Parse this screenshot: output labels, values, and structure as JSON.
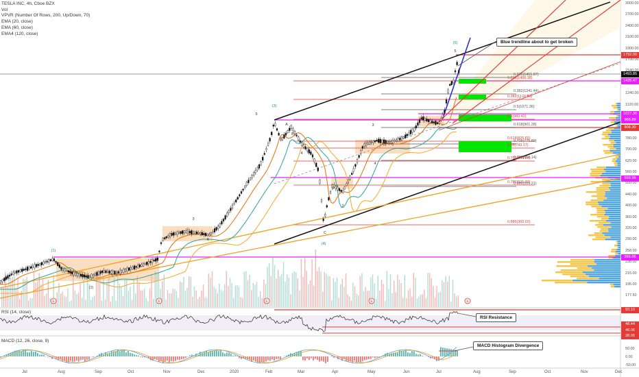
{
  "legend": {
    "title": "TESLA INC, 4h, Cboe BZX",
    "lines": [
      "Vol",
      "VPVR (Number Of Rows, 200, Up/Down, 70)",
      "EMA (20, close)",
      "EMA (60, close)",
      "EMA4 (120, close)"
    ]
  },
  "rsi_legend": "RSI (14, close)",
  "macd_legend": "MACD (12, 26, close, 9)",
  "callouts": {
    "trendline": "Blue trendline about to get broken",
    "rsi": "RSI Resistance",
    "macd": "MACD Histogram Divergence"
  },
  "colors": {
    "up": "#26a69a",
    "down": "#ef5350",
    "candle": "#111111",
    "ema20": "#ef6c00",
    "ema60": "#26a69a",
    "ema120": "#f9a825",
    "magenta": "#e91eff",
    "red": "#e53935",
    "green": "#00e600",
    "orange_zone": "#f5c38a",
    "vp_up": "#4aa3e8",
    "vp_down": "#f7c444"
  },
  "price_tags": [
    {
      "value": "1792.00",
      "color": "#e53935"
    },
    {
      "value": "1493.85",
      "color": "#111111"
    },
    {
      "value": "1435.47",
      "color": "#e91eff"
    },
    {
      "value": "1027.36",
      "color": "#e91eff"
    },
    {
      "value": "968.89",
      "color": "#e91eff"
    },
    {
      "value": "908.30",
      "color": "#e53935"
    },
    {
      "value": "559.99",
      "color": "#e91eff"
    },
    {
      "value": "266.06",
      "color": "#e91eff"
    }
  ],
  "rsi_tags": [
    {
      "value": "93.10",
      "color": "#e53935"
    },
    {
      "value": "48.44",
      "color": "#e53935"
    },
    {
      "value": "46.06",
      "color": "#e53935"
    },
    {
      "value": "38.05",
      "color": "#e53935"
    }
  ],
  "macd_tags": [
    "50.00",
    "0.00",
    "-50.00"
  ],
  "price_axis": [
    "3000.00",
    "2700.00",
    "2400.00",
    "2100.00",
    "1900.00",
    "1700.00",
    "1540.00",
    "1380.00",
    "1240.00",
    "1120.00",
    "1000.00",
    "900.00",
    "780.00",
    "700.00",
    "620.00",
    "560.00",
    "500.00",
    "440.00",
    "400.00",
    "360.00",
    "320.00",
    "290.00",
    "258.00",
    "238.00",
    "215.00",
    "195.00",
    "177.50"
  ],
  "time_axis": [
    "Jul",
    "Aug",
    "Sep",
    "Oct",
    "Nov",
    "Dec",
    "2020",
    "Feb",
    "Mar",
    "Apr",
    "May",
    "Jun",
    "Jul",
    "Aug",
    "Sep",
    "Oct",
    "Nov",
    "Dec"
  ],
  "fib_labels": [
    {
      "text": "0.236(1451.87)",
      "color": "#555555"
    },
    {
      "text": "0.236(1406.18)",
      "color": "#e53935"
    },
    {
      "text": "0.382(1241.44)",
      "color": "#555555"
    },
    {
      "text": "0.382(1173.99)",
      "color": "#e53935"
    },
    {
      "text": "0.5(1071.36)",
      "color": "#555555"
    },
    {
      "text": "0.5(983.42)",
      "color": "#e53935"
    },
    {
      "text": "0.618(901.28)",
      "color": "#555555"
    },
    {
      "text": "0.705(775.89)",
      "color": "#555555"
    },
    {
      "text": "0.618(826.65)",
      "color": "#e53935"
    },
    {
      "text": "0.65(743.17)",
      "color": "#e53935"
    },
    {
      "text": "0.786(659.14)",
      "color": "#555555"
    },
    {
      "text": "0.705(650.54)",
      "color": "#e53935"
    },
    {
      "text": "0.886(515.21)",
      "color": "#555555"
    },
    {
      "text": "0.786(521.92)",
      "color": "#e53935"
    },
    {
      "text": "0.886(360.02)",
      "color": "#e53935"
    }
  ],
  "wave_labels": [
    "(1)",
    "(2)",
    "3",
    "4",
    "(3)",
    "5",
    "4",
    "A",
    "B",
    "C",
    "(4)",
    "1",
    "2",
    "3",
    "4",
    "5",
    "(5)"
  ],
  "chart_data": {
    "type": "candlestick",
    "title": "TESLA INC, 4h, Cboe BZX",
    "ylim": [
      177.5,
      3000
    ],
    "scale": "log",
    "approx_monthly_closes": [
      {
        "month": "Jul",
        "close": 250
      },
      {
        "month": "Aug",
        "close": 225
      },
      {
        "month": "Sep",
        "close": 240
      },
      {
        "month": "Oct",
        "close": 315
      },
      {
        "month": "Nov",
        "close": 330
      },
      {
        "month": "Dec",
        "close": 420
      },
      {
        "month": "2020",
        "close": 650
      },
      {
        "month": "Feb",
        "close": 780
      },
      {
        "month": "Mar",
        "close": 500
      },
      {
        "month": "Apr",
        "close": 780
      },
      {
        "month": "May",
        "close": 835
      },
      {
        "month": "Jun",
        "close": 1080
      },
      {
        "month": "Jul",
        "close": 1493.85
      }
    ]
  }
}
